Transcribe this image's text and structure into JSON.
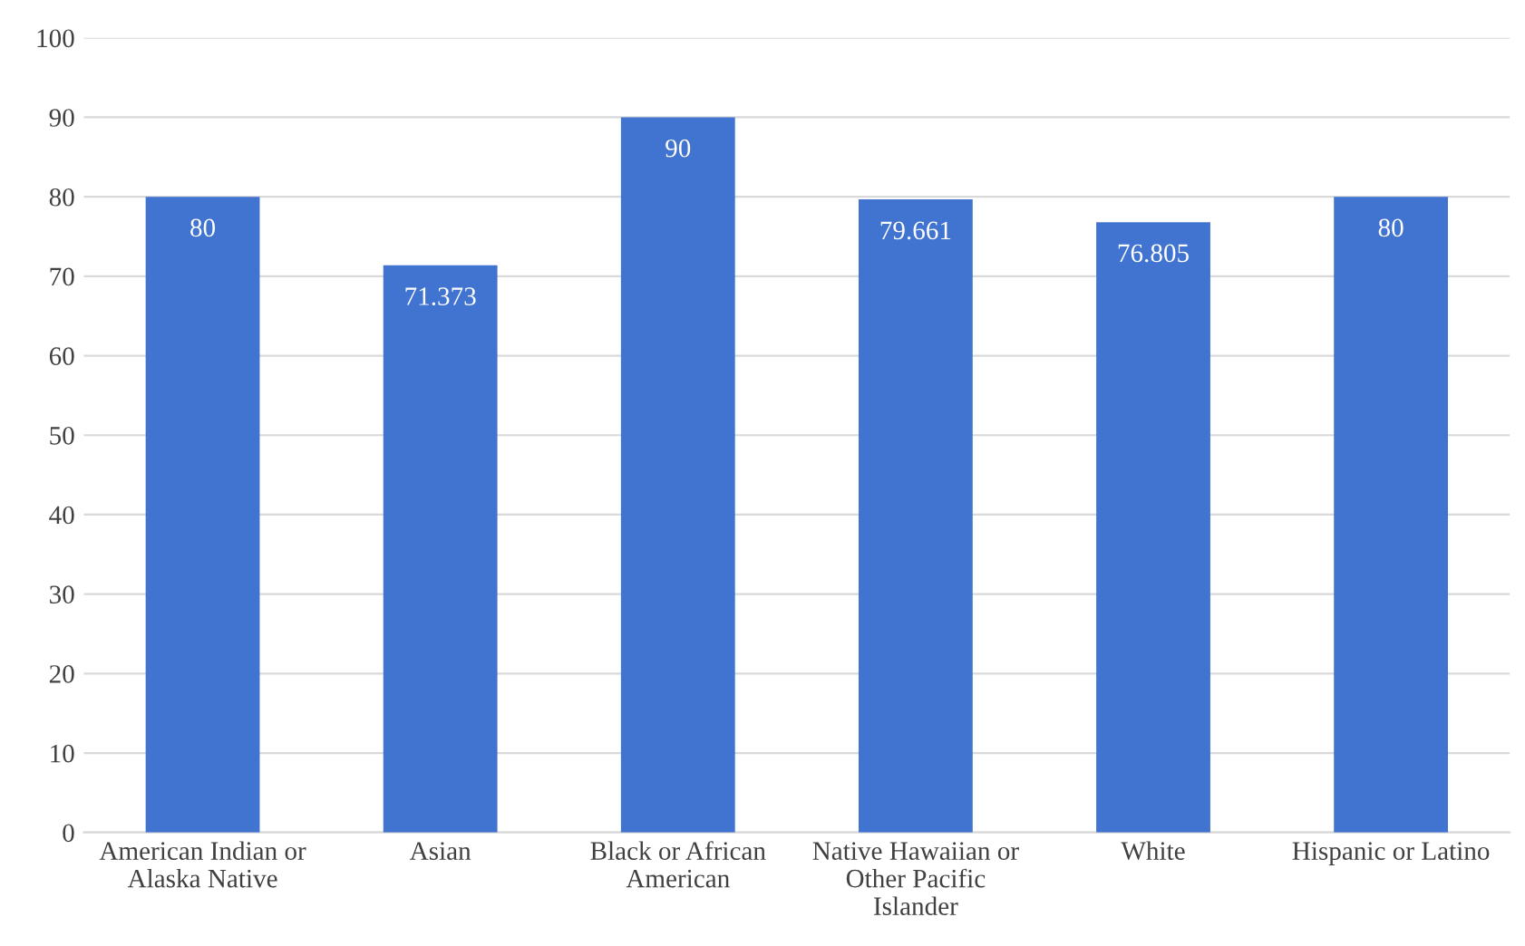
{
  "chart_data": {
    "type": "bar",
    "categories": [
      "American Indian or Alaska Native",
      "Asian",
      "Black or African American",
      "Native Hawaiian or Other Pacific Islander",
      "White",
      "Hispanic or Latino"
    ],
    "values": [
      80,
      71.373,
      90,
      79.661,
      76.805,
      80
    ],
    "color": "#4174d0",
    "ylim": [
      0,
      100
    ],
    "yticks": [
      0,
      10,
      20,
      30,
      40,
      50,
      60,
      70,
      80,
      90,
      100
    ],
    "grid": "y",
    "data_labels": true
  }
}
